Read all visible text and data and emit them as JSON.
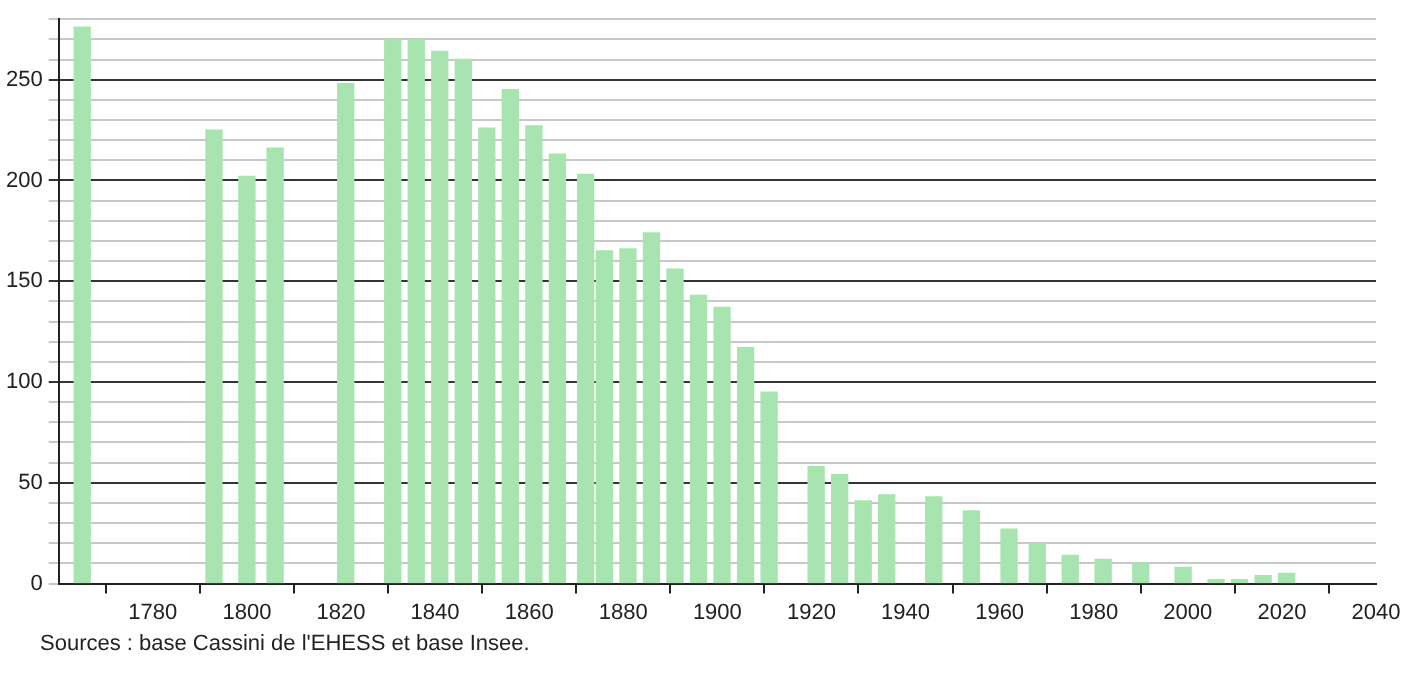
{
  "chart_data": {
    "type": "bar",
    "x": [
      1765,
      1793,
      1800,
      1806,
      1821,
      1831,
      1836,
      1841,
      1846,
      1851,
      1856,
      1861,
      1866,
      1872,
      1876,
      1881,
      1886,
      1891,
      1896,
      1901,
      1906,
      1911,
      1921,
      1926,
      1931,
      1936,
      1946,
      1954,
      1962,
      1968,
      1975,
      1982,
      1990,
      1999,
      2006,
      2011,
      2016,
      2021
    ],
    "values": [
      276,
      225,
      202,
      216,
      248,
      270,
      270,
      264,
      260,
      226,
      245,
      227,
      213,
      203,
      165,
      166,
      174,
      156,
      143,
      137,
      117,
      95,
      58,
      54,
      41,
      44,
      43,
      36,
      27,
      20,
      14,
      12,
      10,
      8,
      2,
      2,
      4,
      5
    ],
    "color": "#a8e4b0",
    "xlim": [
      1760,
      2040
    ],
    "xticks": [
      1780,
      1800,
      1820,
      1840,
      1860,
      1880,
      1900,
      1920,
      1940,
      1960,
      1980,
      2000,
      2020,
      2040
    ],
    "ylim": [
      0,
      280
    ],
    "yticks": [
      0,
      {
        "value": 10,
        "label": null
      },
      {
        "value": 20,
        "label": null
      },
      {
        "value": 30,
        "label": null
      },
      {
        "value": 40,
        "label": null
      },
      50,
      {
        "value": 60,
        "label": null
      },
      {
        "value": 70,
        "label": null
      },
      {
        "value": 80,
        "label": null
      },
      {
        "value": 90,
        "label": null
      },
      100,
      {
        "value": 110,
        "label": null
      },
      {
        "value": 120,
        "label": null
      },
      {
        "value": 130,
        "label": null
      },
      {
        "value": 140,
        "label": null
      },
      150,
      {
        "value": 160,
        "label": null
      },
      {
        "value": 170,
        "label": null
      },
      {
        "value": 180,
        "label": null
      },
      {
        "value": 190,
        "label": null
      },
      200,
      {
        "value": 210,
        "label": null
      },
      {
        "value": 220,
        "label": null
      },
      {
        "value": 230,
        "label": null
      },
      {
        "value": 240,
        "label": null
      },
      250,
      {
        "value": 260,
        "label": null
      },
      {
        "value": 270,
        "label": null
      },
      {
        "value": 280,
        "label": null
      }
    ],
    "grid": "y",
    "legend": false,
    "annotations": [
      "Sources : base Cassini de l'EHESS et base Insee."
    ]
  }
}
